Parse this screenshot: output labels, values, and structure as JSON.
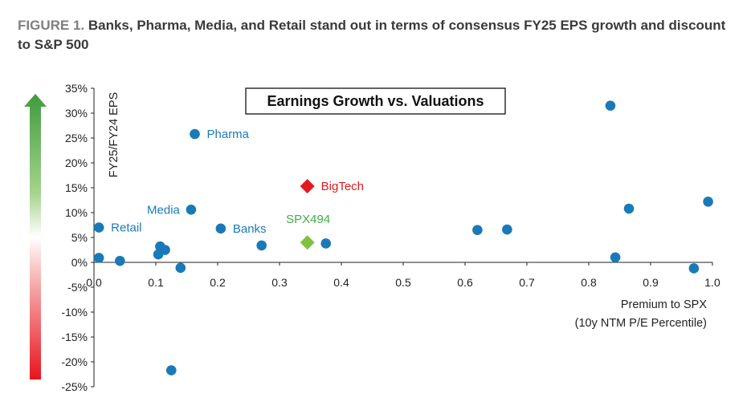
{
  "figure": {
    "label": "FIGURE 1.",
    "caption": "Banks, Pharma, Media, and Retail stand out in terms of consensus FY25 EPS growth and discount to S&P 500"
  },
  "colors": {
    "point": "#1a7ab8",
    "bigtech": "#e31a1c",
    "spx494": "#7dc242",
    "label_blue": "#1a7ab8",
    "label_red": "#e31a1c",
    "label_green": "#3fae49",
    "arrow_top": "#3f9b3c",
    "arrow_bottom": "#e8141e"
  },
  "chart_data": {
    "type": "scatter",
    "title": "Earnings Growth vs. Valuations",
    "xlabel_line1": "Premium to SPX",
    "xlabel_line2": "(10y NTM P/E Percentile)",
    "ylabel": "FY25/FY24 EPS",
    "xlim": [
      0,
      1.0
    ],
    "ylim": [
      -25,
      35
    ],
    "x_ticks": [
      0,
      0.1,
      0.2,
      0.3,
      0.4,
      0.5,
      0.6,
      0.7,
      0.8,
      0.9,
      1.0
    ],
    "x_tick_labels": [
      "0.0",
      "0.1",
      "0.2",
      "0.3",
      "0.4",
      "0.5",
      "0.6",
      "0.7",
      "0.8",
      "0.9",
      "1.0"
    ],
    "y_ticks": [
      35,
      30,
      25,
      20,
      15,
      10,
      5,
      0,
      -5,
      -10,
      -15,
      -20,
      -25
    ],
    "y_tick_labels": [
      "35%",
      "30%",
      "25%",
      "20%",
      "15%",
      "10%",
      "5%",
      "0%",
      "-5%",
      "-10%",
      "-15%",
      "-20%",
      "-25%"
    ],
    "points": [
      {
        "x": 0.835,
        "y": 31.5
      },
      {
        "x": 0.163,
        "y": 25.8,
        "label": "Pharma"
      },
      {
        "x": 0.157,
        "y": 10.6,
        "label": "Media"
      },
      {
        "x": 0.993,
        "y": 12.2
      },
      {
        "x": 0.865,
        "y": 10.8
      },
      {
        "x": 0.008,
        "y": 7.0,
        "label": "Retail"
      },
      {
        "x": 0.205,
        "y": 6.8,
        "label": "Banks"
      },
      {
        "x": 0.62,
        "y": 6.5
      },
      {
        "x": 0.668,
        "y": 6.6
      },
      {
        "x": 0.375,
        "y": 3.8
      },
      {
        "x": 0.271,
        "y": 3.4
      },
      {
        "x": 0.107,
        "y": 3.2
      },
      {
        "x": 0.115,
        "y": 2.5
      },
      {
        "x": 0.104,
        "y": 1.6
      },
      {
        "x": 0.008,
        "y": 0.9
      },
      {
        "x": 0.042,
        "y": 0.3
      },
      {
        "x": 0.843,
        "y": 1.0
      },
      {
        "x": 0.14,
        "y": -1.1
      },
      {
        "x": 0.97,
        "y": -1.2
      },
      {
        "x": 0.125,
        "y": -21.7
      }
    ],
    "highlights": [
      {
        "label": "BigTech",
        "x": 0.345,
        "y": 15.3,
        "marker": "diamond",
        "color": "red"
      },
      {
        "label": "SPX494",
        "x": 0.345,
        "y": 4.0,
        "marker": "diamond",
        "color": "green"
      }
    ]
  }
}
